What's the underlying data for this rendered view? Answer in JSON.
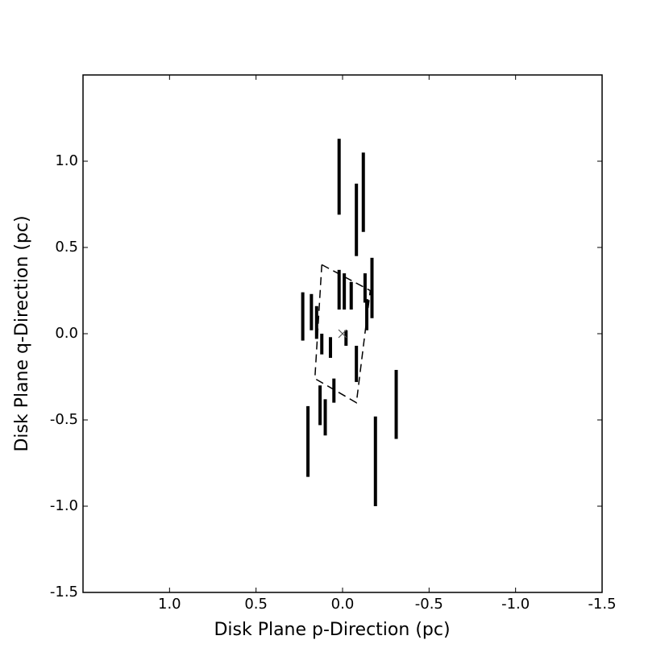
{
  "chart_data": {
    "type": "scatter",
    "xlabel": "Disk Plane p-Direction (pc)",
    "ylabel": "Disk Plane q-Direction (pc)",
    "color": "#000000",
    "xlim": [
      1.5,
      -1.5
    ],
    "ylim": [
      -1.5,
      1.5
    ],
    "xticks": [
      {
        "value": 1.0,
        "label": "1.0"
      },
      {
        "value": 0.5,
        "label": "0.5"
      },
      {
        "value": 0.0,
        "label": "0.0"
      },
      {
        "value": -0.5,
        "label": "-0.5"
      },
      {
        "value": -1.0,
        "label": "-1.0"
      },
      {
        "value": -1.5,
        "label": "-1.5"
      }
    ],
    "yticks": [
      {
        "value": 1.0,
        "label": "1.0"
      },
      {
        "value": 0.5,
        "label": "0.5"
      },
      {
        "value": 0.0,
        "label": "0.0"
      },
      {
        "value": -0.5,
        "label": "-0.5"
      },
      {
        "value": -1.0,
        "label": "-1.0"
      },
      {
        "value": -1.5,
        "label": "-1.5"
      }
    ],
    "x": [
      0.02,
      -0.12,
      -0.08,
      -0.17,
      -0.31,
      -0.19,
      0.2,
      0.23,
      0.18,
      0.13,
      0.1,
      0.05,
      0.02,
      -0.01,
      -0.05,
      0.12,
      0.07,
      -0.08,
      -0.14,
      -0.02,
      0.15,
      -0.13
    ],
    "ymax": [
      1.13,
      1.05,
      0.87,
      0.44,
      -0.21,
      -0.48,
      -0.42,
      0.24,
      0.23,
      -0.3,
      -0.38,
      -0.26,
      0.37,
      0.35,
      0.3,
      0.0,
      -0.02,
      -0.07,
      0.2,
      0.02,
      0.16,
      0.35
    ],
    "ymin": [
      0.69,
      0.59,
      0.45,
      0.09,
      -0.61,
      -1.0,
      -0.83,
      -0.04,
      0.02,
      -0.53,
      -0.59,
      -0.4,
      0.14,
      0.14,
      0.14,
      -0.12,
      -0.14,
      -0.28,
      0.02,
      -0.07,
      -0.03,
      0.18
    ],
    "outline": {
      "x": [
        0.12,
        -0.16,
        -0.08,
        0.16,
        0.12
      ],
      "y": [
        0.4,
        0.25,
        -0.4,
        -0.26,
        0.4
      ]
    },
    "center": {
      "x": 0.0,
      "y": 0.0
    }
  }
}
